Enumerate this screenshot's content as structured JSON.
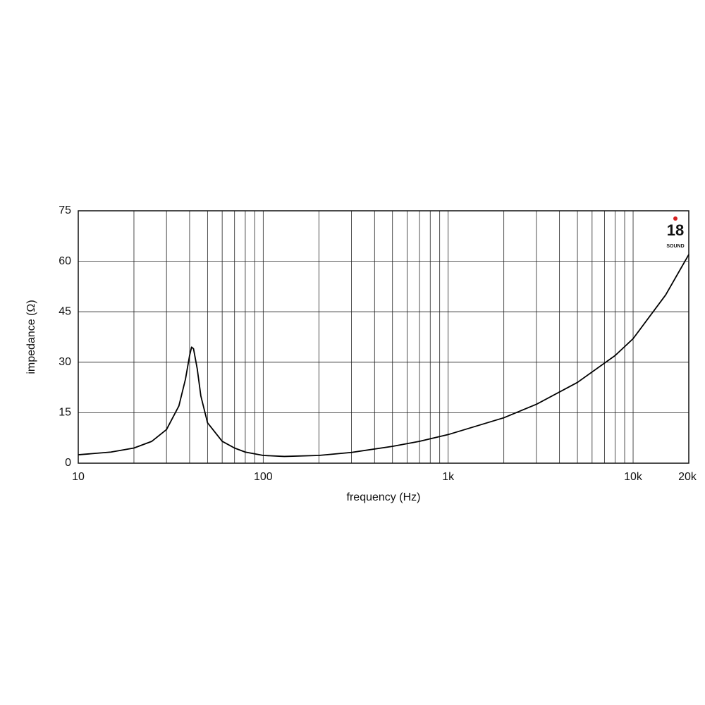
{
  "chart_data": {
    "type": "line",
    "x_label": "frequency (Hz)",
    "y_label": "impedance (Ω)",
    "x_scale": "log",
    "grid": true,
    "xlim": [
      10,
      20000
    ],
    "ylim": [
      0,
      75
    ],
    "xticks": [
      10,
      100,
      {
        "value": 1000,
        "label": "1k"
      },
      {
        "value": 10000,
        "label": "10k"
      },
      {
        "value": 20000,
        "label": "20k"
      }
    ],
    "minor_xticks": [
      20,
      30,
      40,
      50,
      60,
      70,
      80,
      90,
      200,
      300,
      400,
      500,
      600,
      700,
      800,
      900,
      2000,
      3000,
      4000,
      5000,
      6000,
      7000,
      8000,
      9000
    ],
    "yticks": [
      0,
      15,
      30,
      45,
      60,
      75
    ],
    "logo": {
      "number": "18",
      "name": "SOUND",
      "color": "#d62020"
    },
    "x": [
      10,
      15,
      20,
      25,
      30,
      35,
      38,
      40,
      41,
      42,
      44,
      46,
      50,
      60,
      70,
      80,
      100,
      130,
      200,
      300,
      500,
      700,
      1000,
      2000,
      3000,
      5000,
      8000,
      10000,
      15000,
      20000
    ],
    "series": [
      {
        "color": "#000000",
        "values": [
          2.5,
          3.3,
          4.5,
          6.5,
          10,
          17,
          25,
          32,
          34.5,
          34,
          28,
          20,
          12,
          6.5,
          4.5,
          3.3,
          2.3,
          2,
          2.3,
          3.2,
          5,
          6.5,
          8.5,
          13.5,
          17.5,
          24,
          32,
          37,
          50,
          62
        ]
      }
    ]
  }
}
